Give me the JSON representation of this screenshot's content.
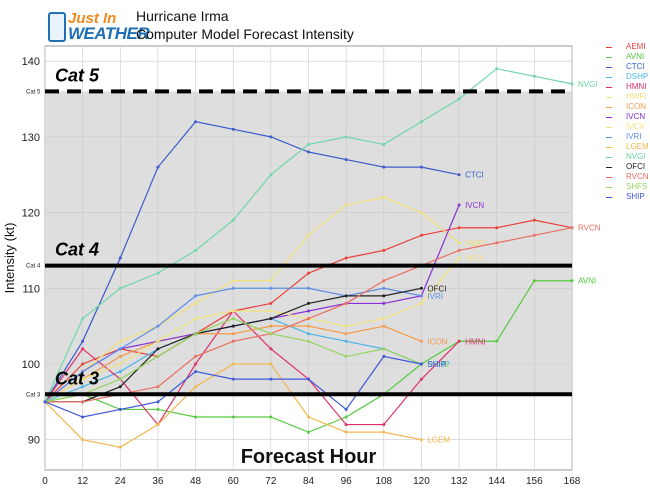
{
  "header": {
    "logo_text_1": "Just In",
    "logo_text_2": "WEATHER",
    "title_line_1": "Hurricane Irma",
    "title_line_2": "Computer Model Forecast Intensity"
  },
  "chart_data": {
    "type": "line",
    "title": "Computer Model Forecast Intensity",
    "xlabel": "Forecast Hour",
    "ylabel": "Intensity (kt)",
    "xlim": [
      0,
      168
    ],
    "ylim": [
      86,
      142
    ],
    "x_ticks": [
      0,
      12,
      24,
      36,
      48,
      60,
      72,
      84,
      96,
      108,
      120,
      132,
      144,
      156,
      168
    ],
    "y_ticks": [
      90,
      100,
      110,
      120,
      130,
      140
    ],
    "grid": true,
    "legend_position": "right",
    "category_lines": [
      {
        "label": "Cat 5",
        "small_label": "Cat 5",
        "value": 136,
        "style": "dashed"
      },
      {
        "label": "Cat 4",
        "small_label": "Cat 4",
        "value": 113,
        "style": "solid"
      },
      {
        "label": "Cat 3",
        "small_label": "Cat 3",
        "value": 96,
        "style": "solid"
      }
    ],
    "series": [
      {
        "name": "AEMI",
        "color": "#e8413c",
        "x": [
          0,
          12,
          24,
          36,
          48,
          60,
          72,
          84,
          96,
          108,
          120,
          132,
          144,
          156,
          168
        ],
        "y": [
          95,
          100,
          102,
          101,
          104,
          107,
          108,
          112,
          114,
          115,
          117,
          118,
          118,
          119,
          118
        ],
        "end_label": ""
      },
      {
        "name": "AVNI",
        "color": "#55c93f",
        "x": [
          0,
          12,
          24,
          36,
          48,
          60,
          72,
          84,
          96,
          108,
          120,
          132,
          144,
          156,
          168
        ],
        "y": [
          95,
          96,
          94,
          94,
          93,
          93,
          93,
          91,
          93,
          96,
          100,
          103,
          103,
          111,
          111
        ],
        "end_label": "AVNI"
      },
      {
        "name": "CTCI",
        "color": "#3a5ccc",
        "x": [
          0,
          12,
          24,
          36,
          48,
          60,
          72,
          84,
          96,
          108,
          120,
          132
        ],
        "y": [
          95,
          103,
          114,
          126,
          132,
          131,
          130,
          128,
          127,
          126,
          126,
          125
        ],
        "end_label": "CTCI"
      },
      {
        "name": "DSHP",
        "color": "#49b4e8",
        "x": [
          0,
          12,
          24,
          36,
          48,
          60,
          72,
          84,
          96,
          108,
          120
        ],
        "y": [
          95,
          97,
          99,
          102,
          104,
          105,
          106,
          104,
          103,
          102,
          100
        ],
        "end_label": "DSHP"
      },
      {
        "name": "HMNI",
        "color": "#e0306a",
        "x": [
          0,
          12,
          24,
          36,
          48,
          60,
          72,
          84,
          96,
          108,
          120,
          132
        ],
        "y": [
          95,
          102,
          98,
          92,
          100,
          107,
          102,
          98,
          92,
          92,
          98,
          103
        ],
        "end_label": "HMNI"
      },
      {
        "name": "HWFI",
        "color": "#f1e07a",
        "x": [
          0,
          12,
          24,
          36,
          48,
          60,
          72,
          84,
          96,
          108,
          120,
          132
        ],
        "y": [
          95,
          99,
          103,
          105,
          108,
          111,
          111,
          117,
          121,
          122,
          120,
          116
        ],
        "end_label": "HWFI"
      },
      {
        "name": "ICON",
        "color": "#f39b4b",
        "x": [
          0,
          12,
          24,
          36,
          48,
          60,
          72,
          84,
          96,
          108,
          120
        ],
        "y": [
          95,
          98,
          101,
          103,
          104,
          104,
          105,
          105,
          104,
          105,
          103
        ],
        "end_label": "ICON"
      },
      {
        "name": "IVCN",
        "color": "#8a2fd6",
        "x": [
          0,
          12,
          24,
          36,
          48,
          60,
          72,
          84,
          96,
          108,
          120,
          132
        ],
        "y": [
          95,
          99,
          102,
          103,
          104,
          105,
          106,
          107,
          108,
          108,
          109,
          121
        ],
        "end_label": "IVCN"
      },
      {
        "name": "IVCX",
        "color": "#f2e37d",
        "x": [
          0,
          12,
          24,
          36,
          48,
          60,
          72,
          84,
          96,
          108,
          120,
          132
        ],
        "y": [
          95,
          98,
          100,
          103,
          106,
          107,
          107,
          106,
          105,
          106,
          108,
          114
        ],
        "end_label": "IVCX"
      },
      {
        "name": "IVRI",
        "color": "#5f8ee6",
        "x": [
          0,
          12,
          24,
          36,
          48,
          60,
          72,
          84,
          96,
          108,
          120
        ],
        "y": [
          95,
          99,
          102,
          105,
          109,
          110,
          110,
          110,
          109,
          110,
          109
        ],
        "end_label": "IVRI"
      },
      {
        "name": "LGEM",
        "color": "#f2b74e",
        "x": [
          0,
          12,
          24,
          36,
          48,
          60,
          72,
          84,
          96,
          108,
          120
        ],
        "y": [
          95,
          90,
          89,
          92,
          97,
          100,
          100,
          93,
          91,
          91,
          90
        ],
        "end_label": "LGEM"
      },
      {
        "name": "NVGI",
        "color": "#6fd7a7",
        "x": [
          0,
          12,
          24,
          36,
          48,
          60,
          72,
          84,
          96,
          108,
          120,
          132,
          144,
          156,
          168
        ],
        "y": [
          95,
          106,
          110,
          112,
          115,
          119,
          125,
          129,
          130,
          129,
          132,
          135,
          139,
          138,
          137
        ],
        "end_label": "NVGI"
      },
      {
        "name": "OFCI",
        "color": "#222222",
        "x": [
          0,
          12,
          24,
          36,
          48,
          60,
          72,
          84,
          96,
          108,
          120
        ],
        "y": [
          95,
          95,
          97,
          102,
          104,
          105,
          106,
          108,
          109,
          109,
          110
        ],
        "end_label": "OFCI"
      },
      {
        "name": "RVCN",
        "color": "#ea6e62",
        "x": [
          0,
          12,
          24,
          36,
          48,
          60,
          72,
          84,
          96,
          108,
          120,
          132,
          144,
          156,
          168
        ],
        "y": [
          95,
          95,
          96,
          97,
          101,
          103,
          104,
          106,
          108,
          111,
          113,
          115,
          116,
          117,
          118
        ],
        "end_label": "RVCN"
      },
      {
        "name": "SHFS",
        "color": "#94d45e",
        "x": [
          0,
          12,
          24,
          36,
          48,
          60,
          72,
          84,
          96,
          108,
          120
        ],
        "y": [
          95,
          96,
          98,
          101,
          104,
          106,
          104,
          103,
          101,
          102,
          100
        ],
        "end_label": "SHFS"
      },
      {
        "name": "SHIP",
        "color": "#3f57d9",
        "x": [
          0,
          12,
          24,
          36,
          48,
          60,
          72,
          84,
          96,
          108,
          120
        ],
        "y": [
          95,
          93,
          94,
          95,
          99,
          98,
          98,
          98,
          94,
          101,
          100
        ],
        "end_label": "SHIP"
      }
    ]
  }
}
